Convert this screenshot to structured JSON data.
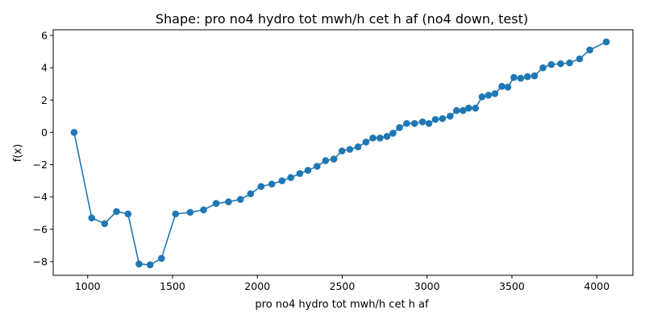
{
  "chart_data": {
    "type": "line",
    "title": "Shape: pro no4 hydro tot mwh/h cet h af (no4 down, test)",
    "xlabel": "pro no4 hydro tot mwh/h cet h af",
    "ylabel": "f(x)",
    "xlim": [
      797,
      4213
    ],
    "ylim": [
      -8.85,
      6.35
    ],
    "xticks": [
      1000,
      1500,
      2000,
      2500,
      3000,
      3500,
      4000
    ],
    "xtick_labels": [
      "1000",
      "1500",
      "2000",
      "2500",
      "3000",
      "3500",
      "4000"
    ],
    "yticks": [
      -8,
      -6,
      -4,
      -2,
      0,
      2,
      4,
      6
    ],
    "ytick_labels": [
      "−8",
      "−6",
      "−4",
      "−2",
      "0",
      "2",
      "4",
      "6"
    ],
    "grid": false,
    "legend": "none",
    "series": [
      {
        "color": "#1f77b4",
        "marker": "circle",
        "x": [
          920,
          1024,
          1100,
          1170,
          1238,
          1303,
          1368,
          1435,
          1518,
          1604,
          1683,
          1757,
          1830,
          1900,
          1960,
          2022,
          2085,
          2145,
          2197,
          2250,
          2298,
          2352,
          2402,
          2451,
          2499,
          2545,
          2593,
          2640,
          2681,
          2723,
          2764,
          2799,
          2838,
          2880,
          2926,
          2973,
          3011,
          3049,
          3091,
          3136,
          3174,
          3212,
          3245,
          3285,
          3324,
          3362,
          3400,
          3441,
          3476,
          3512,
          3552,
          3592,
          3633,
          3683,
          3732,
          3787,
          3840,
          3899,
          3959,
          4056
        ],
        "y": [
          0.0,
          -5.3,
          -5.65,
          -4.9,
          -5.05,
          -8.15,
          -8.2,
          -7.8,
          -5.05,
          -4.95,
          -4.8,
          -4.4,
          -4.3,
          -4.15,
          -3.8,
          -3.35,
          -3.2,
          -3.0,
          -2.8,
          -2.55,
          -2.35,
          -2.1,
          -1.75,
          -1.65,
          -1.15,
          -1.05,
          -0.9,
          -0.6,
          -0.35,
          -0.35,
          -0.25,
          -0.05,
          0.3,
          0.55,
          0.55,
          0.65,
          0.55,
          0.8,
          0.85,
          1.0,
          1.35,
          1.35,
          1.5,
          1.5,
          2.2,
          2.3,
          2.4,
          2.85,
          2.8,
          3.4,
          3.35,
          3.45,
          3.5,
          4.0,
          4.2,
          4.25,
          4.3,
          4.55,
          5.1,
          5.6
        ]
      }
    ]
  }
}
